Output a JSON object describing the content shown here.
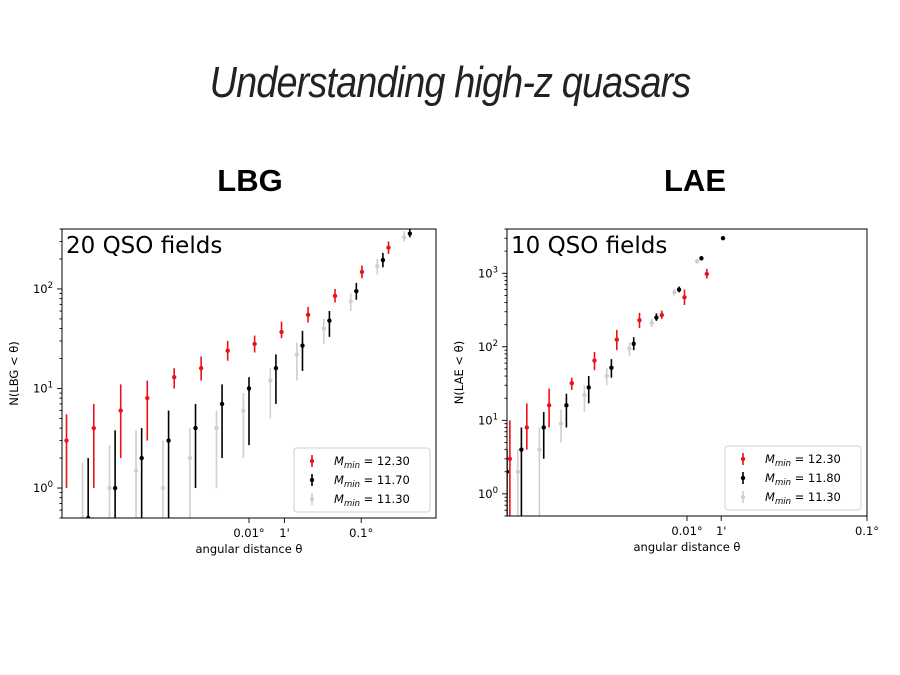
{
  "slide": {
    "title": "Understanding high-z quasars",
    "headings": [
      "LBG",
      "LAE"
    ]
  },
  "chart_data": [
    {
      "type": "scatter",
      "annotation": "20 QSO fields",
      "xlabel": "angular distance θ",
      "ylabel": "N(LBG < θ)",
      "yscale": "log",
      "ylim": [
        0.5,
        400
      ],
      "xticks": [
        {
          "x": 0.5,
          "label": "0.01°"
        },
        {
          "x": 0.595,
          "label": "1'"
        },
        {
          "x": 0.8,
          "label": "0.1°"
        }
      ],
      "yticks": [
        {
          "value": 1,
          "label": "10^0"
        },
        {
          "value": 10,
          "label": "10^1"
        },
        {
          "value": 100,
          "label": "10^2"
        }
      ],
      "legend_position": "bottom-right",
      "series": [
        {
          "label": "12.30",
          "color": "#e8141a",
          "points": [
            [
              0.012,
              3,
              1,
              5.5
            ],
            [
              0.085,
              4,
              1,
              7
            ],
            [
              0.157,
              6,
              2,
              11
            ],
            [
              0.228,
              8,
              3,
              12
            ],
            [
              0.3,
              13,
              10,
              16
            ],
            [
              0.372,
              16,
              12,
              21
            ],
            [
              0.443,
              24,
              19,
              30
            ],
            [
              0.515,
              28,
              23,
              34
            ],
            [
              0.587,
              37,
              32,
              47
            ],
            [
              0.658,
              55,
              46,
              66
            ],
            [
              0.73,
              85,
              73,
              100
            ],
            [
              0.802,
              148,
              128,
              172
            ],
            [
              0.873,
              260,
              225,
              300
            ]
          ]
        },
        {
          "label": "11.70",
          "color": "#000000",
          "points": [
            [
              0.07,
              0.5,
              0.5,
              2
            ],
            [
              0.142,
              1,
              0.5,
              3.8
            ],
            [
              0.213,
              2,
              0.5,
              4
            ],
            [
              0.285,
              3,
              0.5,
              6
            ],
            [
              0.357,
              4,
              1,
              7
            ],
            [
              0.428,
              7,
              2,
              11
            ],
            [
              0.5,
              10,
              2.7,
              13
            ],
            [
              0.572,
              16,
              7,
              22
            ],
            [
              0.643,
              27,
              15,
              38
            ],
            [
              0.715,
              48,
              33,
              60
            ],
            [
              0.787,
              95,
              78,
              115
            ],
            [
              0.858,
              195,
              165,
              230
            ],
            [
              0.93,
              360,
              330,
              420
            ]
          ]
        },
        {
          "label": "11.30",
          "color": "#cfcfcf",
          "points": [
            [
              0.055,
              0.5,
              0.5,
              1.8
            ],
            [
              0.127,
              1,
              0.5,
              2.7
            ],
            [
              0.198,
              1.5,
              0.5,
              3.8
            ],
            [
              0.27,
              1,
              0.5,
              3
            ],
            [
              0.342,
              2,
              0.5,
              4
            ],
            [
              0.413,
              4,
              1,
              6
            ],
            [
              0.485,
              6,
              2,
              9
            ],
            [
              0.557,
              12,
              5,
              16
            ],
            [
              0.628,
              22,
              12,
              29
            ],
            [
              0.7,
              40,
              28,
              50
            ],
            [
              0.772,
              75,
              60,
              90
            ],
            [
              0.843,
              170,
              140,
              200
            ],
            [
              0.915,
              330,
              300,
              380
            ]
          ]
        }
      ]
    },
    {
      "type": "scatter",
      "annotation": "10 QSO fields",
      "xlabel": "angular distance θ",
      "ylabel": "N(LAE < θ)",
      "yscale": "log",
      "ylim": [
        0.5,
        4000
      ],
      "xticks": [
        {
          "x": 0.5,
          "label": "0.01°"
        },
        {
          "x": 0.595,
          "label": "1'"
        },
        {
          "x": 1.0,
          "label": "0.1°"
        }
      ],
      "yticks": [
        {
          "value": 1,
          "label": "10^0"
        },
        {
          "value": 10,
          "label": "10^1"
        },
        {
          "value": 100,
          "label": "10^2"
        },
        {
          "value": 1000,
          "label": "10^3"
        }
      ],
      "legend_position": "bottom-right",
      "series": [
        {
          "label": "12.30",
          "color": "#e8141a",
          "points": [
            [
              0.008,
              3,
              0.5,
              10
            ],
            [
              0.055,
              8,
              4,
              17
            ],
            [
              0.117,
              16,
              8,
              27
            ],
            [
              0.18,
              32,
              26,
              38
            ],
            [
              0.243,
              65,
              48,
              85
            ],
            [
              0.305,
              125,
              90,
              170
            ],
            [
              0.368,
              230,
              180,
              290
            ],
            [
              0.43,
              270,
              240,
              310
            ],
            [
              0.493,
              470,
              370,
              600
            ],
            [
              0.555,
              980,
              850,
              1150
            ]
          ]
        },
        {
          "label": "11.80",
          "color": "#000000",
          "points": [
            [
              0.0,
              2,
              0.5,
              4
            ],
            [
              0.04,
              4,
              0.5,
              8
            ],
            [
              0.102,
              8,
              3,
              13
            ],
            [
              0.165,
              16,
              8,
              23
            ],
            [
              0.227,
              28,
              17,
              40
            ],
            [
              0.29,
              52,
              38,
              68
            ],
            [
              0.352,
              110,
              90,
              135
            ],
            [
              0.415,
              250,
              225,
              285
            ],
            [
              0.478,
              600,
              550,
              660
            ],
            [
              0.54,
              1600,
              1550,
              1700
            ],
            [
              0.6,
              3000,
              2900,
              3200
            ]
          ]
        },
        {
          "label": "11.30",
          "color": "#cfcfcf",
          "points": [
            [
              0.03,
              2,
              0.5,
              4
            ],
            [
              0.09,
              4,
              0.5,
              8
            ],
            [
              0.15,
              9,
              5,
              14
            ],
            [
              0.215,
              22,
              13,
              30
            ],
            [
              0.277,
              40,
              30,
              52
            ],
            [
              0.34,
              95,
              75,
              115
            ],
            [
              0.402,
              210,
              185,
              240
            ],
            [
              0.465,
              550,
              500,
              610
            ],
            [
              0.528,
              1450,
              1400,
              1550
            ]
          ]
        }
      ]
    }
  ]
}
